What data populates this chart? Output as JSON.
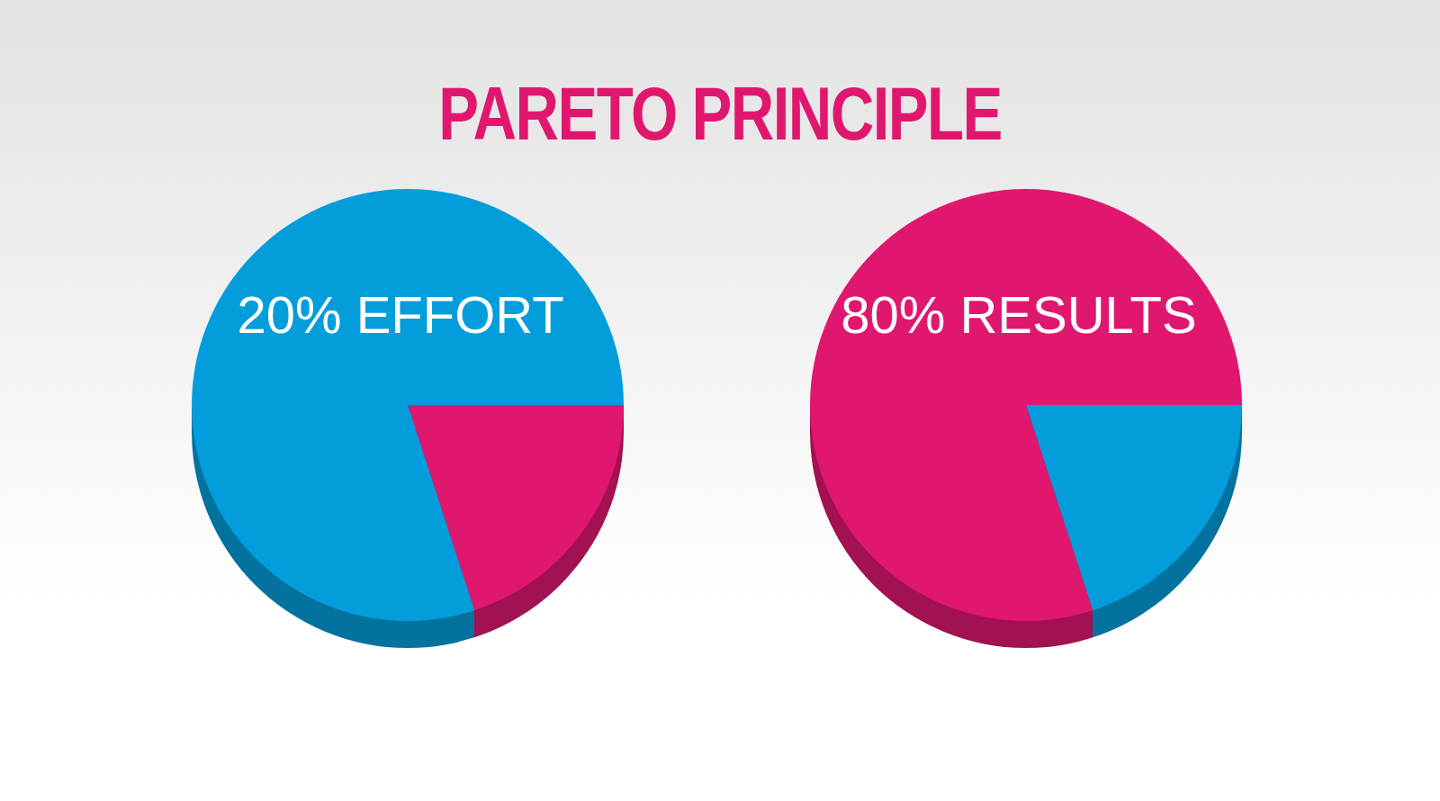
{
  "chart_data": [
    {
      "type": "pie",
      "title": "PARETO PRINCIPLE",
      "categories": [
        null,
        null
      ],
      "values": [
        20,
        80
      ],
      "colors": [
        "#e0176f",
        "#049ddb"
      ],
      "annotations": [
        "20% EFFORT"
      ]
    },
    {
      "type": "pie",
      "categories": [
        null,
        null
      ],
      "values": [
        20,
        80
      ],
      "colors": [
        "#049ddb",
        "#e0176f"
      ],
      "annotations": [
        "80% RESULTS"
      ]
    }
  ]
}
